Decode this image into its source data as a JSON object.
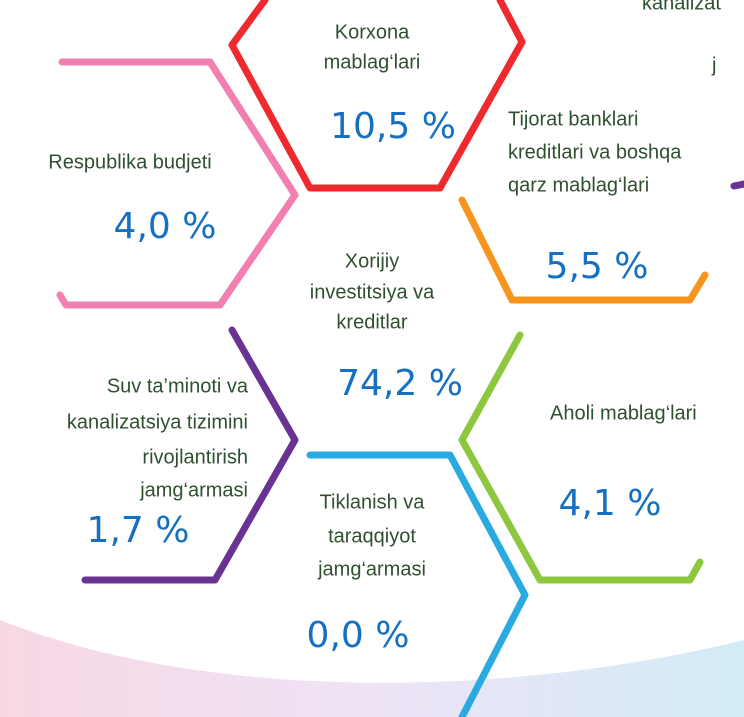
{
  "fragments": [
    "kanalizat",
    "j"
  ],
  "nodes": [
    {
      "label": [
        "Korxona",
        "mablag‘lari"
      ],
      "value": "10,5 %"
    },
    {
      "label": [
        "Respublika budjeti"
      ],
      "value": "4,0 %"
    },
    {
      "label": [
        "Tijorat banklari",
        "kreditlari va boshqa",
        "qarz mablag‘lari"
      ],
      "value": "5,5 %"
    },
    {
      "label": [
        "Xorijiy",
        "investitsiya va",
        "kreditlar"
      ],
      "value": "74,2 %"
    },
    {
      "label": [
        "Suv ta’minoti va",
        "kanalizatsiya tizimini",
        "rivojlantirish",
        "jamg‘armasi"
      ],
      "value": "1,7 %"
    },
    {
      "label": [
        "Aholi mablag‘lari"
      ],
      "value": "4,1 %"
    },
    {
      "label": [
        "Tiklanish va",
        "taraqqiyot",
        "jamg‘armasi"
      ],
      "value": "0,0 %"
    }
  ]
}
